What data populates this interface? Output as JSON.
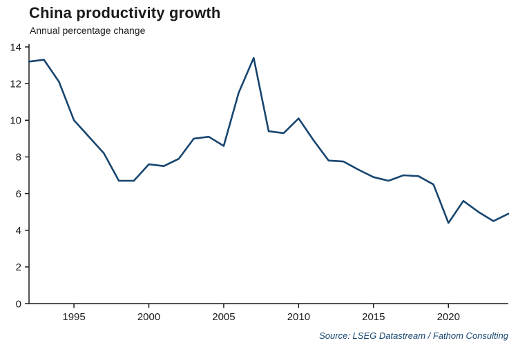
{
  "header": {
    "title": "China productivity growth",
    "subtitle": "Annual percentage change"
  },
  "footer": {
    "source": "Source: LSEG Datastream / Fathom Consulting"
  },
  "chart_data": {
    "type": "line",
    "title": "China productivity growth",
    "subtitle": "Annual percentage change",
    "xlabel": "",
    "ylabel": "",
    "x": [
      1992,
      1993,
      1994,
      1995,
      1996,
      1997,
      1998,
      1999,
      2000,
      2001,
      2002,
      2003,
      2004,
      2005,
      2006,
      2007,
      2008,
      2009,
      2010,
      2011,
      2012,
      2013,
      2014,
      2015,
      2016,
      2017,
      2018,
      2019,
      2020,
      2021,
      2022,
      2023,
      2024
    ],
    "values": [
      13.2,
      13.3,
      12.1,
      10.0,
      9.1,
      8.2,
      6.7,
      6.7,
      7.6,
      7.5,
      7.9,
      9.0,
      9.1,
      8.6,
      11.5,
      13.4,
      9.4,
      9.3,
      10.1,
      8.9,
      7.8,
      7.75,
      7.3,
      6.9,
      6.7,
      7.0,
      6.95,
      6.5,
      4.4,
      5.6,
      5.0,
      4.5,
      4.9
    ],
    "xlim": [
      1992,
      2024
    ],
    "ylim": [
      0,
      14
    ],
    "x_ticks": [
      1995,
      2000,
      2005,
      2010,
      2015,
      2020
    ],
    "y_ticks": [
      0,
      2,
      4,
      6,
      8,
      10,
      12,
      14
    ],
    "grid": false,
    "legend": false,
    "line_color": "#17456f",
    "axis_color": "#1a1a1a"
  }
}
